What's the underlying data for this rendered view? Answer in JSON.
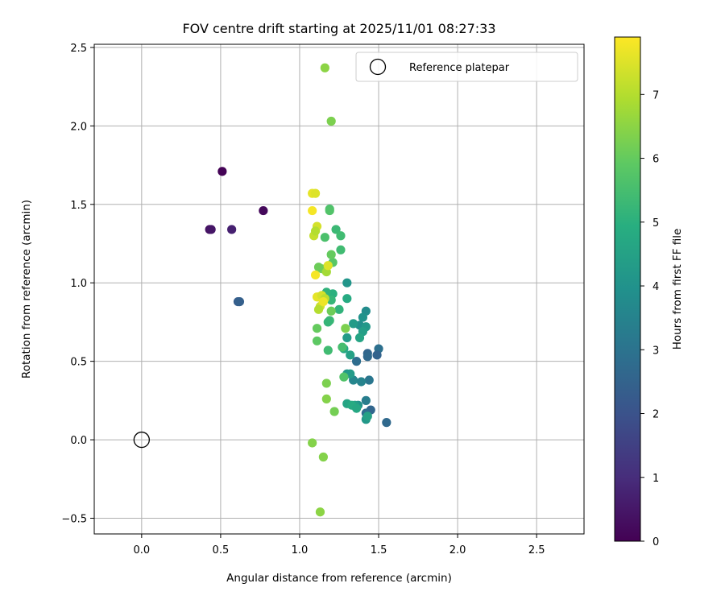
{
  "chart_data": {
    "type": "scatter",
    "title": "FOV centre drift starting at 2025/11/01 08:27:33",
    "xlabel": "Angular distance from reference (arcmin)",
    "ylabel": "Rotation from reference (arcmin)",
    "xlim": [
      -0.3,
      2.8
    ],
    "ylim": [
      -0.6,
      2.52
    ],
    "x_ticks": [
      0.0,
      0.5,
      1.0,
      1.5,
      2.0,
      2.5
    ],
    "x_tick_labels": [
      "0.0",
      "0.5",
      "1.0",
      "1.5",
      "2.0",
      "2.5"
    ],
    "y_ticks": [
      -0.5,
      0.0,
      0.5,
      1.0,
      1.5,
      2.0,
      2.5
    ],
    "y_tick_labels": [
      "−0.5",
      "0.0",
      "0.5",
      "1.0",
      "1.5",
      "2.0",
      "2.5"
    ],
    "grid": true,
    "legend": {
      "location": "upper right",
      "entries": [
        "Reference platepar"
      ]
    },
    "reference_point": {
      "x": 0.0,
      "y": 0.0,
      "label": "Reference platepar"
    },
    "colorbar": {
      "label": "Hours from first FF file",
      "colormap": "viridis",
      "range": [
        0,
        7.9
      ],
      "ticks": [
        0,
        1,
        2,
        3,
        4,
        5,
        6,
        7
      ],
      "tick_labels": [
        "0",
        "1",
        "2",
        "3",
        "4",
        "5",
        "6",
        "7"
      ]
    },
    "points": [
      [
        0.51,
        1.71,
        0.05
      ],
      [
        0.77,
        1.46,
        0.15
      ],
      [
        0.43,
        1.34,
        0.35
      ],
      [
        0.44,
        1.34,
        0.45
      ],
      [
        0.57,
        1.34,
        0.7
      ],
      [
        0.61,
        0.88,
        2.3
      ],
      [
        0.62,
        0.88,
        2.4
      ],
      [
        1.55,
        0.11,
        2.7
      ],
      [
        1.45,
        0.19,
        2.6
      ],
      [
        1.42,
        0.17,
        2.8
      ],
      [
        1.5,
        0.58,
        2.9
      ],
      [
        1.49,
        0.54,
        2.5
      ],
      [
        1.43,
        0.55,
        2.6
      ],
      [
        1.43,
        0.53,
        2.7
      ],
      [
        1.36,
        0.5,
        2.8
      ],
      [
        1.44,
        0.38,
        3.1
      ],
      [
        1.39,
        0.37,
        3.5
      ],
      [
        1.34,
        0.38,
        3.6
      ],
      [
        1.42,
        0.25,
        3.3
      ],
      [
        1.42,
        0.13,
        4.2
      ],
      [
        1.43,
        0.15,
        4.5
      ],
      [
        1.3,
        0.42,
        4.1
      ],
      [
        1.32,
        0.42,
        4.3
      ],
      [
        1.37,
        0.22,
        4.0
      ],
      [
        1.35,
        0.22,
        4.4
      ],
      [
        1.3,
        0.23,
        4.6
      ],
      [
        1.33,
        0.22,
        4.8
      ],
      [
        1.36,
        0.2,
        4.7
      ],
      [
        1.42,
        0.82,
        3.8
      ],
      [
        1.4,
        0.78,
        4.0
      ],
      [
        1.38,
        0.73,
        3.9
      ],
      [
        1.42,
        0.72,
        4.2
      ],
      [
        1.34,
        0.74,
        4.3
      ],
      [
        1.4,
        0.69,
        4.4
      ],
      [
        1.38,
        0.65,
        4.6
      ],
      [
        1.32,
        0.54,
        4.5
      ],
      [
        1.3,
        0.65,
        4.3
      ],
      [
        1.28,
        0.58,
        4.7
      ],
      [
        1.3,
        1.0,
        4.1
      ],
      [
        1.3,
        0.9,
        4.8
      ],
      [
        1.21,
        0.93,
        5.0
      ],
      [
        1.2,
        0.89,
        5.2
      ],
      [
        1.17,
        0.94,
        5.1
      ],
      [
        1.25,
        0.83,
        5.1
      ],
      [
        1.19,
        0.76,
        5.3
      ],
      [
        1.18,
        0.75,
        5.2
      ],
      [
        1.18,
        0.57,
        5.4
      ],
      [
        1.27,
        0.59,
        5.5
      ],
      [
        1.28,
        0.4,
        5.7
      ],
      [
        1.23,
        1.34,
        5.3
      ],
      [
        1.26,
        1.3,
        5.4
      ],
      [
        1.19,
        1.47,
        5.6
      ],
      [
        1.19,
        1.46,
        5.7
      ],
      [
        1.16,
        1.29,
        5.6
      ],
      [
        1.26,
        1.21,
        5.4
      ],
      [
        1.21,
        1.13,
        5.8
      ],
      [
        1.2,
        1.18,
        6.0
      ],
      [
        1.14,
        1.09,
        6.2
      ],
      [
        1.12,
        1.1,
        6.1
      ],
      [
        1.17,
        1.07,
        6.8
      ],
      [
        1.29,
        0.71,
        6.3
      ],
      [
        1.11,
        0.71,
        6.0
      ],
      [
        1.11,
        0.63,
        5.9
      ],
      [
        1.2,
        0.82,
        6.1
      ],
      [
        1.17,
        0.36,
        6.3
      ],
      [
        1.17,
        0.26,
        6.4
      ],
      [
        1.22,
        0.18,
        6.2
      ],
      [
        1.08,
        -0.02,
        6.4
      ],
      [
        1.15,
        -0.11,
        6.4
      ],
      [
        1.13,
        -0.46,
        6.5
      ],
      [
        1.16,
        2.37,
        6.5
      ],
      [
        1.2,
        2.03,
        6.3
      ],
      [
        1.08,
        1.57,
        7.6
      ],
      [
        1.1,
        1.57,
        7.5
      ],
      [
        1.08,
        1.46,
        7.8
      ],
      [
        1.11,
        1.36,
        7.4
      ],
      [
        1.09,
        1.3,
        7.2
      ],
      [
        1.1,
        1.33,
        7.0
      ],
      [
        1.18,
        1.11,
        7.5
      ],
      [
        1.1,
        1.05,
        7.8
      ],
      [
        1.12,
        0.91,
        7.2
      ],
      [
        1.11,
        0.91,
        7.6
      ],
      [
        1.14,
        0.92,
        7.4
      ],
      [
        1.16,
        0.9,
        7.1
      ],
      [
        1.13,
        0.85,
        7.3
      ],
      [
        1.12,
        0.83,
        7.0
      ],
      [
        1.15,
        0.88,
        7.7
      ]
    ]
  }
}
